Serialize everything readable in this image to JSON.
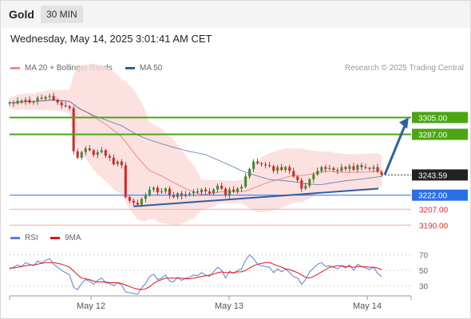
{
  "header": {
    "title": "Gold",
    "interval": "30 MIN"
  },
  "timestamp": "Wednesday, May 14, 2025 3:01:41 AM CET",
  "credit": "Research © 2025 Trading Central",
  "legend": {
    "main": [
      {
        "label": "MA 20 + Bollinger Bands",
        "color": "#f08a8a"
      },
      {
        "label": "MA 50",
        "color": "#2f5e9e"
      }
    ],
    "indicator": [
      {
        "label": "RSI",
        "color": "#5b7fd6"
      },
      {
        "label": "9MA",
        "color": "#e0141b"
      }
    ]
  },
  "chart_data": [
    {
      "type": "candlestick",
      "title": "",
      "x_tick_labels": [
        "May 12",
        "May 13",
        "May 14"
      ],
      "ylim": [
        3180,
        3330
      ],
      "levels": [
        {
          "value": 3305.0,
          "label": "3305.00",
          "kind": "resistance",
          "color": "#4aa612"
        },
        {
          "value": 3287.0,
          "label": "3287.00",
          "kind": "resistance",
          "color": "#4aa612"
        },
        {
          "value": 3243.59,
          "label": "3243.59",
          "kind": "last-price",
          "color": "#333333"
        },
        {
          "value": 3222.0,
          "label": "3222.00",
          "kind": "pivot",
          "color": "#2b6fe6"
        },
        {
          "value": 3207.0,
          "label": "3207.00",
          "kind": "support",
          "color": "#e03030"
        },
        {
          "value": 3190.0,
          "label": "3190.00",
          "kind": "support",
          "color": "#e03030"
        }
      ],
      "trendline": {
        "from": 3210,
        "to": 3229
      },
      "forecast_arrow": {
        "from": 3244,
        "to": 3305
      },
      "series": [
        {
          "name": "MA 20 + Bollinger Bands",
          "color": "#f08a8a"
        },
        {
          "name": "MA 50",
          "color": "#2f5e9e"
        }
      ],
      "close_path": [
        3321,
        3320,
        3323,
        3322,
        3324,
        3321,
        3322,
        3326,
        3325,
        3327,
        3328,
        3324,
        3321,
        3318,
        3317,
        3315,
        3269,
        3262,
        3268,
        3272,
        3270,
        3265,
        3268,
        3270,
        3264,
        3262,
        3255,
        3258,
        3254,
        3220,
        3216,
        3214,
        3212,
        3218,
        3222,
        3228,
        3230,
        3225,
        3226,
        3229,
        3222,
        3220,
        3224,
        3221,
        3223,
        3224,
        3226,
        3225,
        3228,
        3226,
        3224,
        3228,
        3232,
        3229,
        3222,
        3228,
        3226,
        3229,
        3231,
        3242,
        3250,
        3258,
        3256,
        3255,
        3254,
        3253,
        3248,
        3252,
        3249,
        3252,
        3248,
        3242,
        3238,
        3229,
        3232,
        3239,
        3244,
        3248,
        3252,
        3250,
        3251,
        3249,
        3248,
        3252,
        3250,
        3253,
        3249,
        3254,
        3252,
        3251,
        3250,
        3252,
        3247,
        3244
      ]
    },
    {
      "type": "line",
      "title": "",
      "series": [
        {
          "name": "RSI",
          "color": "#5b7fd6"
        },
        {
          "name": "9MA",
          "color": "#e0141b"
        }
      ],
      "ylim": [
        20,
        80
      ],
      "y_ticks": [
        "70",
        "50",
        "30"
      ],
      "rsi": [
        52,
        54,
        57,
        55,
        60,
        58,
        56,
        62,
        60,
        63,
        65,
        58,
        54,
        50,
        47,
        44,
        28,
        25,
        33,
        38,
        36,
        32,
        37,
        40,
        34,
        33,
        30,
        34,
        31,
        22,
        21,
        20,
        19,
        27,
        33,
        42,
        45,
        38,
        40,
        44,
        36,
        35,
        41,
        37,
        40,
        41,
        44,
        43,
        47,
        44,
        42,
        48,
        54,
        50,
        40,
        49,
        46,
        50,
        52,
        63,
        70,
        65,
        58,
        56,
        55,
        54,
        47,
        52,
        48,
        52,
        47,
        42,
        40,
        32,
        38,
        48,
        53,
        58,
        60,
        55,
        56,
        54,
        52,
        56,
        53,
        57,
        50,
        58,
        55,
        53,
        51,
        54,
        46,
        42
      ],
      "rsi_ma": [
        53,
        53,
        54,
        55,
        56,
        57,
        57,
        58,
        59,
        60,
        60,
        60,
        59,
        58,
        56,
        54,
        49,
        44,
        40,
        39,
        38,
        36,
        35,
        35,
        35,
        34,
        34,
        34,
        33,
        31,
        29,
        27,
        26,
        25,
        26,
        29,
        33,
        36,
        38,
        40,
        40,
        40,
        40,
        40,
        39,
        39,
        40,
        41,
        42,
        43,
        44,
        45,
        47,
        48,
        47,
        47,
        47,
        48,
        48,
        50,
        53,
        56,
        58,
        59,
        60,
        60,
        58,
        56,
        54,
        52,
        51,
        49,
        47,
        44,
        41,
        40,
        42,
        45,
        48,
        51,
        54,
        55,
        56,
        56,
        55,
        55,
        54,
        55,
        55,
        55,
        54,
        54,
        53,
        51
      ]
    }
  ]
}
